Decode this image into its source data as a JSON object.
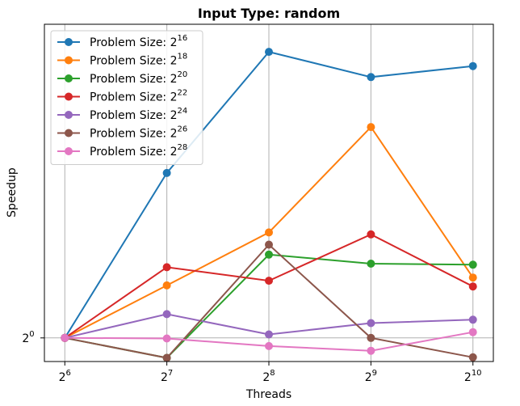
{
  "chart_data": {
    "type": "line",
    "title": "Input Type: random",
    "xlabel": "Threads",
    "ylabel": "Speedup",
    "x": [
      64,
      128,
      256,
      512,
      1024
    ],
    "x_ticks": [
      {
        "base": "2",
        "exp": "6"
      },
      {
        "base": "2",
        "exp": "7"
      },
      {
        "base": "2",
        "exp": "8"
      },
      {
        "base": "2",
        "exp": "9"
      },
      {
        "base": "2",
        "exp": "10"
      }
    ],
    "y_ticks": [
      {
        "value": 1,
        "base": "2",
        "exp": "0"
      }
    ],
    "x_scale": "log2",
    "y_scale": "log2",
    "ylim": [
      0.96,
      1.72
    ],
    "grid": "x",
    "legend_position": "top-left",
    "series": [
      {
        "name_base": "Problem Size: 2",
        "name_exp": "16",
        "color": "#1f77b4",
        "values": [
          1.0,
          1.33,
          1.64,
          1.57,
          1.6
        ]
      },
      {
        "name_base": "Problem Size: 2",
        "name_exp": "18",
        "color": "#ff7f0e",
        "values": [
          1.0,
          1.095,
          1.2,
          1.44,
          1.11
        ]
      },
      {
        "name_base": "Problem Size: 2",
        "name_exp": "20",
        "color": "#2ca02c",
        "values": [
          1.0,
          0.966,
          1.155,
          1.137,
          1.135
        ]
      },
      {
        "name_base": "Problem Size: 2",
        "name_exp": "22",
        "color": "#d62728",
        "values": [
          1.0,
          1.13,
          1.104,
          1.196,
          1.093
        ]
      },
      {
        "name_base": "Problem Size: 2",
        "name_exp": "24",
        "color": "#9467bd",
        "values": [
          1.0,
          1.042,
          1.006,
          1.026,
          1.032
        ]
      },
      {
        "name_base": "Problem Size: 2",
        "name_exp": "26",
        "color": "#8c564b",
        "values": [
          1.0,
          0.966,
          1.175,
          1.0,
          0.967
        ]
      },
      {
        "name_base": "Problem Size: 2",
        "name_exp": "28",
        "color": "#e377c2",
        "values": [
          1.0,
          0.999,
          0.986,
          0.978,
          1.01
        ]
      }
    ]
  }
}
